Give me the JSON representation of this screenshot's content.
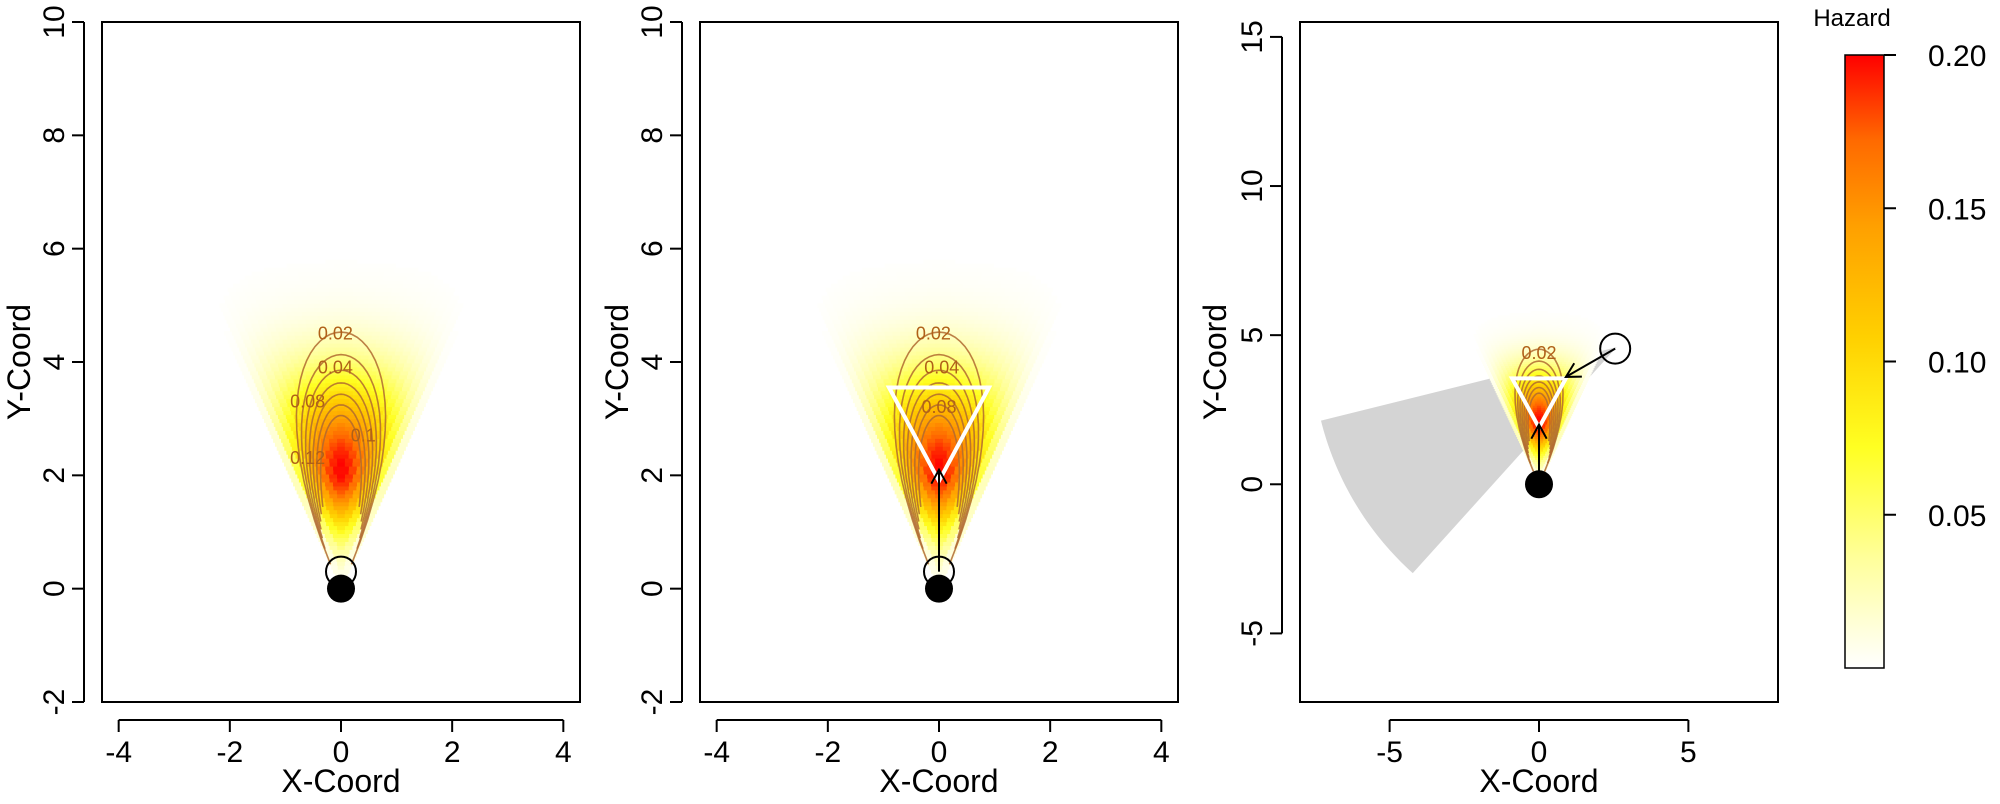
{
  "legend": {
    "title": "Hazard",
    "ticks": [
      "0.20",
      "0.15",
      "0.10",
      "0.05"
    ],
    "tick_values": [
      0.2,
      0.15,
      0.1,
      0.05
    ],
    "range": [
      0,
      0.2
    ],
    "colors": [
      "#ffffff",
      "#ffff7a",
      "#ffff00",
      "#ffd400",
      "#ffa500",
      "#ff6600",
      "#ff0000"
    ]
  },
  "chart_data": [
    {
      "type": "heatmap",
      "xlabel": "X-Coord",
      "ylabel": "Y-Coord",
      "xlim": [
        -4.3,
        4.3
      ],
      "ylim": [
        -2,
        10
      ],
      "xticks": [
        -4,
        -2,
        0,
        2,
        4
      ],
      "yticks": [
        -2,
        0,
        2,
        4,
        6,
        8,
        10
      ],
      "xtick_labels": [
        "-4",
        "-2",
        "0",
        "2",
        "4"
      ],
      "ytick_labels": [
        "-2",
        "0",
        "2",
        "4",
        "6",
        "8",
        "10"
      ],
      "contour_levels": [
        0.02,
        0.04,
        0.06,
        0.08,
        0.1,
        0.12,
        0.14
      ],
      "contour_labels": [
        {
          "text": "0.02",
          "x": -0.1,
          "y": 4.4
        },
        {
          "text": "0.04",
          "x": -0.1,
          "y": 3.8
        },
        {
          "text": "0.08",
          "x": -0.6,
          "y": 3.2
        },
        {
          "text": "0.1",
          "x": 0.4,
          "y": 2.6
        },
        {
          "text": "0.12",
          "x": -0.6,
          "y": 2.2
        }
      ],
      "field": {
        "source_x": 0,
        "source_y": 0,
        "half_angle_deg": 25,
        "range": 7,
        "peak_y": 2.1,
        "peak_value": 0.2
      },
      "source_point": {
        "x": 0,
        "y": 0
      },
      "observer_point": {
        "x": 0,
        "y": 0.3
      }
    },
    {
      "type": "heatmap",
      "xlabel": "X-Coord",
      "ylabel": "Y-Coord",
      "xlim": [
        -4.3,
        4.3
      ],
      "ylim": [
        -2,
        10
      ],
      "xticks": [
        -4,
        -2,
        0,
        2,
        4
      ],
      "yticks": [
        -2,
        0,
        2,
        4,
        6,
        8,
        10
      ],
      "xtick_labels": [
        "-4",
        "-2",
        "0",
        "2",
        "4"
      ],
      "ytick_labels": [
        "-2",
        "0",
        "2",
        "4",
        "6",
        "8",
        "10"
      ],
      "contour_levels": [
        0.02,
        0.04,
        0.06,
        0.08,
        0.1,
        0.12,
        0.14
      ],
      "contour_labels": [
        {
          "text": "0.02",
          "x": -0.1,
          "y": 4.4
        },
        {
          "text": "0.04",
          "x": 0.05,
          "y": 3.8
        },
        {
          "text": "0.08",
          "x": 0.0,
          "y": 3.1
        }
      ],
      "field": {
        "source_x": 0,
        "source_y": 0,
        "half_angle_deg": 25,
        "range": 7,
        "peak_y": 2.1,
        "peak_value": 0.2
      },
      "source_point": {
        "x": 0,
        "y": 0
      },
      "observer_point": {
        "x": 0,
        "y": 0.3
      },
      "arrow": {
        "from": [
          0,
          0.3
        ],
        "to": [
          0,
          2.1
        ]
      },
      "triangle": [
        [
          -0.9,
          3.55
        ],
        [
          0.9,
          3.55
        ],
        [
          0,
          1.9
        ]
      ]
    },
    {
      "type": "heatmap",
      "xlabel": "X-Coord",
      "ylabel": "Y-Coord",
      "xlim": [
        -8,
        8
      ],
      "ylim": [
        -7.3,
        15.5
      ],
      "xticks": [
        -5,
        0,
        5
      ],
      "yticks": [
        -5,
        0,
        5,
        10,
        15
      ],
      "xtick_labels": [
        "-5",
        "0",
        "5"
      ],
      "ytick_labels": [
        "-5",
        "0",
        "5",
        "10",
        "15"
      ],
      "contour_levels": [
        0.02,
        0.04,
        0.06,
        0.08,
        0.1,
        0.12,
        0.14
      ],
      "contour_labels": [
        {
          "text": "0.02",
          "x": 0.0,
          "y": 4.2
        }
      ],
      "field": {
        "source_x": 0,
        "source_y": 0,
        "half_angle_deg": 25,
        "range": 7,
        "peak_y": 2.1,
        "peak_value": 0.2
      },
      "source_point": {
        "x": 0,
        "y": 0
      },
      "observer_point": {
        "x": 2.55,
        "y": 4.55
      },
      "arrow": {
        "from": [
          2.55,
          4.55
        ],
        "to": [
          0.9,
          3.6
        ]
      },
      "arrow2": {
        "from": [
          0,
          0.3
        ],
        "to": [
          0,
          2.0
        ]
      },
      "triangle": [
        [
          -0.9,
          3.55
        ],
        [
          0.9,
          3.55
        ],
        [
          0,
          1.9
        ]
      ],
      "shadow_wedge": {
        "center": [
          2.6,
          4.6
        ],
        "radius": 10.2,
        "start_deg": 194,
        "end_deg": 228
      }
    }
  ]
}
